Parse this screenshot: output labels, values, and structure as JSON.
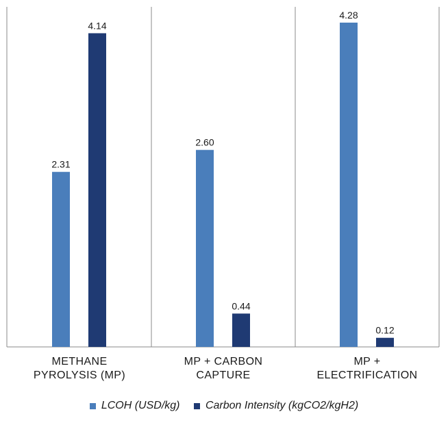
{
  "chart_data": {
    "type": "bar",
    "title": "",
    "xlabel": "",
    "ylabel": "",
    "categories": [
      "METHANE PYROLYSIS (MP)",
      "MP + CARBON CAPTURE",
      "MP + ELECTRIFICATION"
    ],
    "category_lines": [
      [
        "METHANE",
        "PYROLYSIS (MP)"
      ],
      [
        "MP + CARBON",
        "CAPTURE"
      ],
      [
        "MP +",
        "ELECTRIFICATION"
      ]
    ],
    "series": [
      {
        "name": "LCOH (USD/kg)",
        "values": [
          2.31,
          2.6,
          4.28
        ],
        "labels": [
          "2.31",
          "2.60",
          "4.28"
        ],
        "color": "#4a7ebb"
      },
      {
        "name": "Carbon Intensity (kgCO2/kgH2)",
        "values": [
          4.14,
          0.44,
          0.12
        ],
        "labels": [
          "4.14",
          "0.44",
          "0.12"
        ],
        "color": "#1f3a73"
      }
    ],
    "ylim": [
      0,
      4.28
    ],
    "legend_position": "bottom",
    "grid": false
  }
}
